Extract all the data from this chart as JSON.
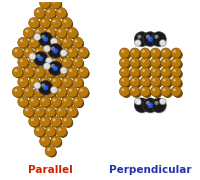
{
  "background_color": "#ffffff",
  "label_left": "Parallel",
  "label_right": "Perpendicular",
  "label_left_color": "#cc2200",
  "label_right_color": "#2233aa",
  "label_fontsize": 7.5,
  "gold_color": "#b8780a",
  "gold_highlight": "#e8b040",
  "gold_shadow": "#7a4d00",
  "black_color": "#1a1a1a",
  "black_mid": "#444444",
  "blue_color": "#2255dd",
  "white_color": "#dddddd",
  "white_edge": "#888888",
  "fig_width": 2.0,
  "fig_height": 1.8,
  "dpi": 100
}
